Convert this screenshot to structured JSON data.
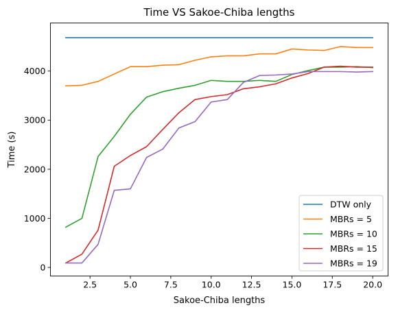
{
  "chart_data": {
    "type": "line",
    "title": "Time VS Sakoe-Chiba lengths",
    "xlabel": "Sakoe-Chiba lengths",
    "ylabel": "Time (s)",
    "xlim": [
      0.05,
      20.95
    ],
    "ylim": [
      -175,
      4980
    ],
    "xticks": [
      2.5,
      5.0,
      7.5,
      10.0,
      12.5,
      15.0,
      17.5,
      20.0
    ],
    "xtick_labels": [
      "2.5",
      "5.0",
      "7.5",
      "10.0",
      "12.5",
      "15.0",
      "17.5",
      "20.0"
    ],
    "yticks": [
      0,
      1000,
      2000,
      3000,
      4000
    ],
    "ytick_labels": [
      "0",
      "1000",
      "2000",
      "3000",
      "4000"
    ],
    "grid": false,
    "legend_position": "lower-right",
    "x": [
      1,
      2,
      3,
      4,
      5,
      6,
      7,
      8,
      9,
      10,
      11,
      12,
      13,
      14,
      15,
      16,
      17,
      18,
      19,
      20
    ],
    "series": [
      {
        "name": "DTW only",
        "color": "#1f77b4",
        "values": [
          4680,
          4680,
          4680,
          4680,
          4680,
          4680,
          4680,
          4680,
          4680,
          4680,
          4680,
          4680,
          4680,
          4680,
          4680,
          4680,
          4680,
          4680,
          4680,
          4680
        ]
      },
      {
        "name": "MBRs = 5",
        "color": "#ff7f0e",
        "values": [
          3700,
          3710,
          3790,
          3940,
          4090,
          4090,
          4120,
          4130,
          4220,
          4290,
          4310,
          4310,
          4350,
          4350,
          4450,
          4430,
          4420,
          4500,
          4480,
          4480
        ]
      },
      {
        "name": "MBRs = 10",
        "color": "#2ca02c",
        "values": [
          820,
          1000,
          2260,
          2670,
          3120,
          3470,
          3580,
          3650,
          3710,
          3810,
          3790,
          3790,
          3810,
          3790,
          3930,
          4010,
          4080,
          4080,
          4090,
          4070
        ]
      },
      {
        "name": "MBRs = 15",
        "color": "#d62728",
        "values": [
          90,
          270,
          760,
          2060,
          2280,
          2460,
          2810,
          3150,
          3420,
          3480,
          3520,
          3640,
          3680,
          3740,
          3860,
          3950,
          4080,
          4100,
          4080,
          4080
        ]
      },
      {
        "name": "MBRs = 19",
        "color": "#9467bd",
        "values": [
          90,
          90,
          470,
          1570,
          1600,
          2240,
          2410,
          2840,
          2970,
          3370,
          3420,
          3770,
          3910,
          3920,
          3940,
          3990,
          3990,
          3990,
          3980,
          3990
        ]
      }
    ]
  }
}
